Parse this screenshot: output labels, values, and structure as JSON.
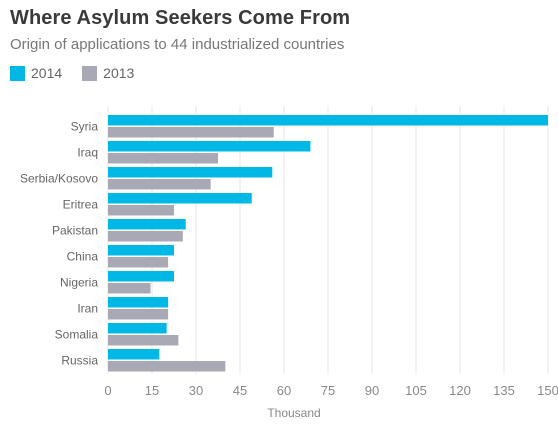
{
  "chart_data": {
    "type": "bar",
    "orientation": "horizontal",
    "title": "Where Asylum Seekers Come From",
    "subtitle": "Origin of applications to 44 industrialized countries",
    "xlabel": "Thousand",
    "ylabel": "",
    "xlim": [
      0,
      150
    ],
    "xticks": [
      "0",
      "15",
      "30",
      "45",
      "60",
      "75",
      "90",
      "105",
      "120",
      "135",
      "150"
    ],
    "grid": "vertical",
    "legend_position": "top-left",
    "categories": [
      "Syria",
      "Iraq",
      "Serbia/Kosovo",
      "Eritrea",
      "Pakistan",
      "China",
      "Nigeria",
      "Iran",
      "Somalia",
      "Russia"
    ],
    "series": [
      {
        "name": "2014",
        "color": "#00b8e6",
        "values": [
          150,
          69,
          56,
          49,
          26.5,
          22.5,
          22.5,
          20.5,
          20,
          17.5
        ]
      },
      {
        "name": "2013",
        "color": "#a9a9b6",
        "values": [
          56.5,
          37.5,
          35,
          22.5,
          25.5,
          20.5,
          14.5,
          20.5,
          24,
          40
        ]
      }
    ]
  }
}
